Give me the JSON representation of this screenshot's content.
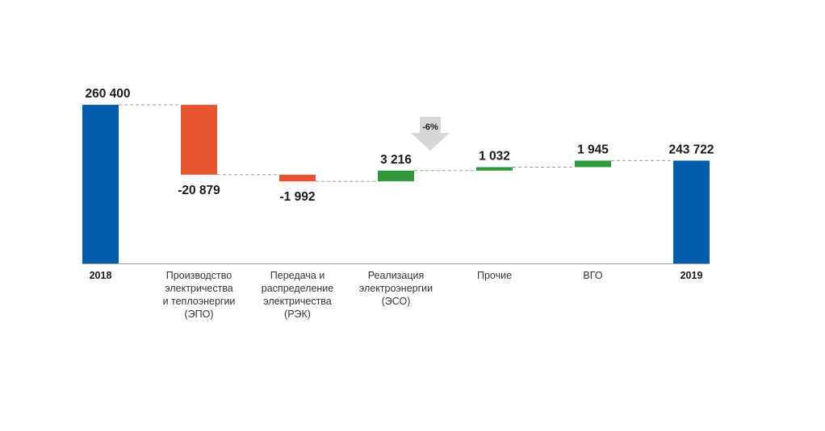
{
  "chart_data": {
    "type": "bar",
    "subtype": "waterfall",
    "categories": [
      [
        "2018"
      ],
      [
        "Производство",
        "электричества",
        "и теплоэнергии",
        "(ЭПО)"
      ],
      [
        "Передача и",
        "распределение",
        "электричества",
        "(РЭК)"
      ],
      [
        "Реализация",
        "электроэнергии",
        "(ЭСО)"
      ],
      [
        "Прочие"
      ],
      [
        "ВГО"
      ],
      [
        "2019"
      ]
    ],
    "category_bold": [
      true,
      false,
      false,
      false,
      false,
      false,
      true
    ],
    "values": [
      260400,
      -20879,
      -1992,
      3216,
      1032,
      1945,
      243722
    ],
    "value_labels": [
      "260 400",
      "-20 879",
      "-1 992",
      "3 216",
      "1 032",
      "1 945",
      "243 722"
    ],
    "kinds": [
      "total",
      "delta",
      "delta",
      "delta",
      "delta",
      "delta",
      "total"
    ],
    "change_badge": "-6%",
    "colors": {
      "total": "#005bab",
      "decrease": "#e8542f",
      "increase": "#2e9a3d",
      "connector": "#999999",
      "baseline": "#999999",
      "badge": "#d6d6d6"
    },
    "ylim": [
      213000,
      265000
    ],
    "grid": false,
    "legend": "none"
  }
}
